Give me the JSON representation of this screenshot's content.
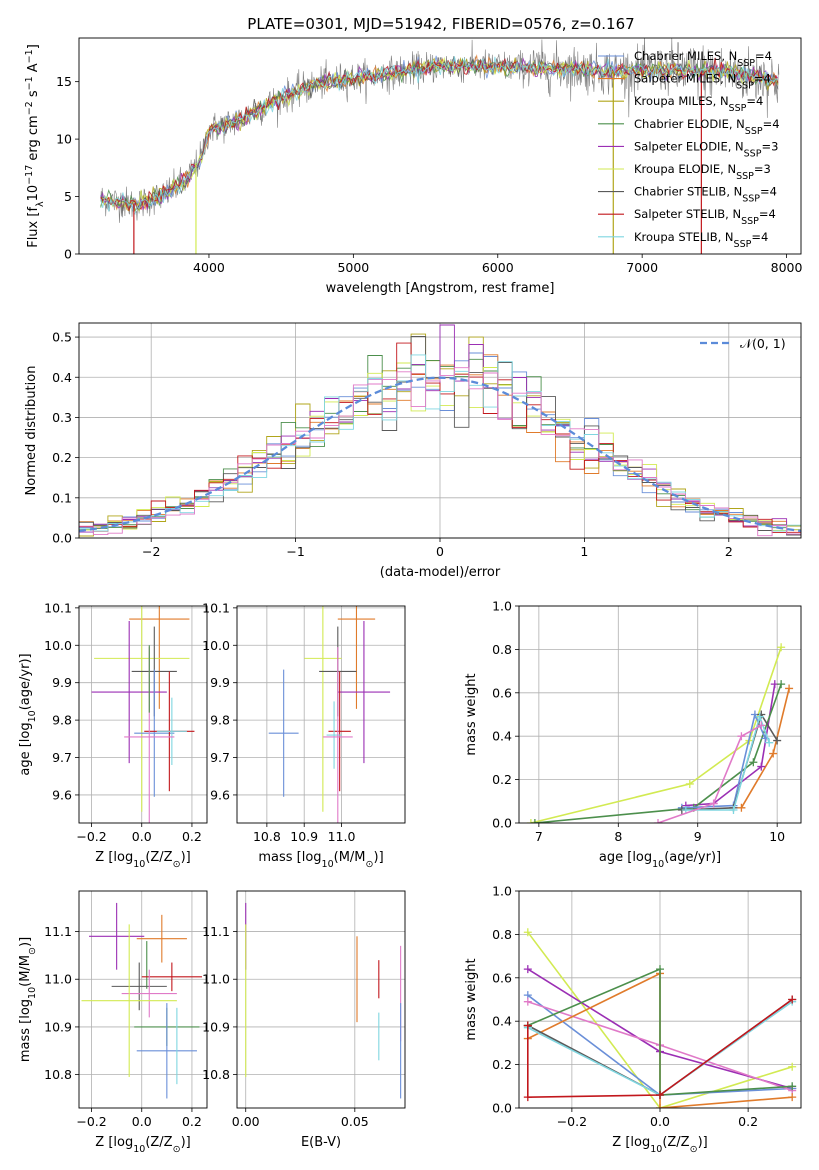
{
  "title": "PLATE=0301, MJD=51942, FIBERID=0576, z=0.167",
  "colors": {
    "Chabrier MILES": "#6a8fd8",
    "Salpeter MILES": "#e07b2b",
    "Kroupa MILES": "#b0a51a",
    "Chabrier ELODIE": "#4c8f4c",
    "Salpeter ELODIE": "#9b2fb4",
    "Kroupa ELODIE": "#d2ea52",
    "Chabrier STELIB": "#5a5a5a",
    "Salpeter STELIB": "#c2171c",
    "Kroupa STELIB": "#7fd6e0",
    "extra_pink": "#e07ac8",
    "observed": "#808080",
    "gaussian": "#5b8bd9",
    "grid": "#b0b0b0"
  },
  "chart_data": [
    {
      "id": "spectrum",
      "type": "line",
      "xlabel": "wavelength [Angstrom, rest frame]",
      "ylabel": "Flux [f_λ10^-17 erg cm^-2 s^-1 A^-1]",
      "xlim": [
        3100,
        8100
      ],
      "ylim": [
        0,
        18.8
      ],
      "xticks": [
        4000,
        5000,
        6000,
        7000,
        8000
      ],
      "yticks": [
        0,
        5,
        10,
        15
      ],
      "grid": false,
      "legend_position": "top-right",
      "legend": [
        {
          "label": "Chabrier MILES, N_SSP=4",
          "color_key": "Chabrier MILES"
        },
        {
          "label": "Salpeter MILES, N_SSP=4",
          "color_key": "Salpeter MILES"
        },
        {
          "label": "Kroupa MILES, N_SSP=4",
          "color_key": "Kroupa MILES"
        },
        {
          "label": "Chabrier ELODIE, N_SSP=4",
          "color_key": "Chabrier ELODIE"
        },
        {
          "label": "Salpeter ELODIE, N_SSP=3",
          "color_key": "Salpeter ELODIE"
        },
        {
          "label": "Kroupa ELODIE, N_SSP=3",
          "color_key": "Kroupa ELODIE"
        },
        {
          "label": "Chabrier STELIB, N_SSP=4",
          "color_key": "Chabrier STELIB"
        },
        {
          "label": "Salpeter STELIB, N_SSP=4",
          "color_key": "Salpeter STELIB"
        },
        {
          "label": "Kroupa STELIB, N_SSP=4",
          "color_key": "Kroupa STELIB"
        }
      ],
      "continuum": {
        "x": [
          3250,
          3500,
          3700,
          3850,
          3950,
          4000,
          4200,
          4500,
          4800,
          5200,
          5600,
          6000,
          6400,
          6800,
          7200,
          7600,
          7950
        ],
        "y": [
          4.8,
          4.3,
          5.2,
          6.5,
          8.5,
          10.8,
          11.6,
          13.6,
          15.0,
          15.6,
          16.4,
          16.3,
          16.2,
          15.9,
          16.0,
          15.8,
          15.1
        ]
      },
      "model_drops": [
        {
          "series": "Salpeter STELIB",
          "x": 3480
        },
        {
          "series": "Kroupa ELODIE",
          "x": 3910
        },
        {
          "series": "Kroupa MILES",
          "x": 6800
        },
        {
          "series": "Salpeter STELIB",
          "x": 7410
        }
      ]
    },
    {
      "id": "residual-histogram",
      "type": "line",
      "xlabel": "(data-model)/error",
      "ylabel": "Normed distribution",
      "xlim": [
        -2.5,
        2.5
      ],
      "ylim": [
        0,
        0.535
      ],
      "xticks": [
        -2,
        -1,
        0,
        1,
        2
      ],
      "yticks": [
        0.0,
        0.1,
        0.2,
        0.3,
        0.4,
        0.5
      ],
      "grid": true,
      "legend_position": "top-right",
      "gaussian_label": "𝒩(0, 1)",
      "bin_width": 0.1
    },
    {
      "id": "z-age",
      "type": "scatter",
      "xlabel": "Z [log10(Z/Z⊙)]",
      "ylabel": "age  [log10(age/yr)]",
      "xlim": [
        -0.25,
        0.26
      ],
      "ylim": [
        9.525,
        10.105
      ],
      "xticks": [
        -0.2,
        0.0,
        0.2
      ],
      "yticks": [
        9.6,
        9.7,
        9.8,
        9.9,
        10.0,
        10.1
      ],
      "grid": true,
      "points": [
        {
          "c": "Salpeter MILES",
          "x": 0.07,
          "y": 10.07,
          "xe": 0.12,
          "ye": 0.24
        },
        {
          "c": "Kroupa ELODIE",
          "x": 0.0,
          "y": 9.965,
          "xe": 0.19,
          "ye": 0.41
        },
        {
          "c": "Chabrier STELIB",
          "x": 0.05,
          "y": 9.93,
          "xe": 0.09,
          "ye": 0.12
        },
        {
          "c": "Salpeter ELODIE",
          "x": -0.05,
          "y": 9.875,
          "xe": 0.15,
          "ye": 0.19
        },
        {
          "c": "Chabrier MILES",
          "x": 0.05,
          "y": 9.765,
          "xe": 0.08,
          "ye": 0.17
        },
        {
          "c": "Salpeter STELIB",
          "x": 0.11,
          "y": 9.77,
          "xe": 0.1,
          "ye": 0.16
        },
        {
          "c": "Kroupa STELIB",
          "x": 0.12,
          "y": 9.77,
          "xe": 0.06,
          "ye": 0.09
        },
        {
          "c": "extra_pink",
          "x": 0.03,
          "y": 9.755,
          "xe": 0.1,
          "ye": 0.24
        },
        {
          "c": "Chabrier ELODIE",
          "x": 0.03,
          "y": 9.91,
          "xe": 0.0,
          "ye": 0.09
        }
      ]
    },
    {
      "id": "mass-age",
      "type": "scatter",
      "xlabel": "mass [log10(M/M⊙)]",
      "ylabel": "",
      "xlim": [
        10.72,
        11.17
      ],
      "ylim": [
        9.525,
        10.105
      ],
      "xticks": [
        10.8,
        10.9,
        11.0
      ],
      "yticks": [
        9.6,
        9.7,
        9.8,
        9.9,
        10.0,
        10.1
      ],
      "grid": true,
      "points": [
        {
          "c": "Salpeter MILES",
          "x": 11.04,
          "y": 10.07,
          "xe": 0.05,
          "ye": 0.24
        },
        {
          "c": "Kroupa ELODIE",
          "x": 10.95,
          "y": 9.965,
          "xe": 0.05,
          "ye": 0.41
        },
        {
          "c": "Chabrier STELIB",
          "x": 10.99,
          "y": 9.93,
          "xe": 0.05,
          "ye": 0.12
        },
        {
          "c": "Salpeter ELODIE",
          "x": 11.06,
          "y": 9.875,
          "xe": 0.07,
          "ye": 0.19
        },
        {
          "c": "Chabrier MILES",
          "x": 10.845,
          "y": 9.765,
          "xe": 0.04,
          "ye": 0.17
        },
        {
          "c": "Salpeter STELIB",
          "x": 10.995,
          "y": 9.77,
          "xe": 0.03,
          "ye": 0.16
        },
        {
          "c": "Kroupa STELIB",
          "x": 10.98,
          "y": 9.76,
          "xe": 0.02,
          "ye": 0.09
        },
        {
          "c": "extra_pink",
          "x": 10.99,
          "y": 9.755,
          "xe": 0.04,
          "ye": 0.24
        }
      ]
    },
    {
      "id": "age-weight",
      "type": "line",
      "xlabel": "age  [log10(age/yr)]",
      "ylabel": "mass weight",
      "xlim": [
        6.75,
        10.3
      ],
      "ylim": [
        0.0,
        1.0
      ],
      "xticks": [
        7,
        8,
        9,
        10
      ],
      "yticks": [
        0.0,
        0.2,
        0.4,
        0.6,
        0.8,
        1.0
      ],
      "grid": true,
      "series": [
        {
          "c": "Kroupa ELODIE",
          "x": [
            6.9,
            8.9,
            9.65,
            10.05
          ],
          "y": [
            0.0,
            0.18,
            0.38,
            0.81
          ]
        },
        {
          "c": "Salpeter MILES",
          "x": [
            9.55,
            9.95,
            10.15
          ],
          "y": [
            0.07,
            0.32,
            0.62
          ]
        },
        {
          "c": "Salpeter ELODIE",
          "x": [
            8.85,
            9.2,
            9.8,
            9.97
          ],
          "y": [
            0.08,
            0.09,
            0.26,
            0.64
          ]
        },
        {
          "c": "Chabrier ELODIE",
          "x": [
            6.95,
            8.95,
            9.7,
            10.05
          ],
          "y": [
            0.0,
            0.07,
            0.28,
            0.64
          ]
        },
        {
          "c": "Chabrier MILES",
          "x": [
            8.8,
            9.45,
            9.72,
            9.85
          ],
          "y": [
            0.07,
            0.08,
            0.5,
            0.39
          ]
        },
        {
          "c": "Chabrier STELIB",
          "x": [
            8.8,
            9.45,
            9.8,
            10.0
          ],
          "y": [
            0.06,
            0.07,
            0.5,
            0.38
          ]
        },
        {
          "c": "Kroupa STELIB",
          "x": [
            8.85,
            9.45,
            9.78,
            9.9
          ],
          "y": [
            0.06,
            0.06,
            0.49,
            0.37
          ]
        },
        {
          "c": "extra_pink",
          "x": [
            8.5,
            9.2,
            9.55,
            9.8
          ],
          "y": [
            0.0,
            0.09,
            0.4,
            0.45
          ]
        }
      ]
    },
    {
      "id": "z-mass",
      "type": "scatter",
      "xlabel": "Z [log10(Z/Z⊙)]",
      "ylabel": "mass [log10(M/M⊙)]",
      "xlim": [
        -0.25,
        0.26
      ],
      "ylim": [
        10.73,
        11.185
      ],
      "xticks": [
        -0.2,
        0.0,
        0.2
      ],
      "yticks": [
        10.8,
        10.9,
        11.0,
        11.1
      ],
      "grid": true,
      "points": [
        {
          "c": "Salpeter ELODIE",
          "x": -0.1,
          "y": 11.09,
          "xe": 0.11,
          "ye": 0.07
        },
        {
          "c": "Salpeter MILES",
          "x": 0.08,
          "y": 11.085,
          "xe": 0.1,
          "ye": 0.05
        },
        {
          "c": "Chabrier ELODIE",
          "x": 0.02,
          "y": 11.03,
          "xe": 0.0,
          "ye": 0.05
        },
        {
          "c": "Salpeter STELIB",
          "x": 0.12,
          "y": 11.005,
          "xe": 0.12,
          "ye": 0.03
        },
        {
          "c": "Chabrier STELIB",
          "x": -0.01,
          "y": 10.985,
          "xe": 0.11,
          "ye": 0.05
        },
        {
          "c": "extra_pink",
          "x": 0.03,
          "y": 10.97,
          "xe": 0.11,
          "ye": 0.05
        },
        {
          "c": "Kroupa ELODIE",
          "x": -0.05,
          "y": 10.955,
          "xe": 0.19,
          "ye": 0.16
        },
        {
          "c": "Chabrier ELODIE",
          "x": 0.1,
          "y": 10.9,
          "xe": 0.13,
          "ye": 0.04
        },
        {
          "c": "Chabrier MILES",
          "x": 0.1,
          "y": 10.85,
          "xe": 0.12,
          "ye": 0.1
        },
        {
          "c": "Kroupa STELIB",
          "x": 0.14,
          "y": 10.86,
          "xe": 0.0,
          "ye": 0.08
        }
      ]
    },
    {
      "id": "ebv-mass",
      "type": "scatter",
      "xlabel": "E(B-V)",
      "ylabel": "",
      "xlim": [
        -0.004,
        0.073
      ],
      "ylim": [
        10.73,
        11.185
      ],
      "xticks": [
        0.0,
        0.05
      ],
      "yticks": [
        10.8,
        10.9,
        11.0,
        11.1
      ],
      "grid": true,
      "points": [
        {
          "c": "Salpeter ELODIE",
          "x": 0.0,
          "y": 11.09,
          "xe": 0.0,
          "ye": 0.07
        },
        {
          "c": "Kroupa ELODIE",
          "x": 0.0,
          "y": 10.955,
          "xe": 0.0,
          "ye": 0.16
        },
        {
          "c": "Salpeter MILES",
          "x": 0.051,
          "y": 11.0,
          "xe": 0.0,
          "ye": 0.09
        },
        {
          "c": "Salpeter STELIB",
          "x": 0.061,
          "y": 11.0,
          "xe": 0.0,
          "ye": 0.04
        },
        {
          "c": "Kroupa STELIB",
          "x": 0.061,
          "y": 10.88,
          "xe": 0.0,
          "ye": 0.05
        },
        {
          "c": "extra_pink",
          "x": 0.071,
          "y": 10.97,
          "xe": 0.0,
          "ye": 0.1
        },
        {
          "c": "Chabrier MILES",
          "x": 0.071,
          "y": 10.85,
          "xe": 0.0,
          "ye": 0.1
        }
      ]
    },
    {
      "id": "z-weight",
      "type": "line",
      "xlabel": "Z [log10(Z/Z⊙)]",
      "ylabel": "mass weight",
      "xlim": [
        -0.32,
        0.32
      ],
      "ylim": [
        0.0,
        1.0
      ],
      "xticks": [
        -0.2,
        0.0,
        0.2
      ],
      "yticks": [
        0.0,
        0.2,
        0.4,
        0.6,
        0.8,
        1.0
      ],
      "grid": true,
      "series": [
        {
          "c": "Kroupa ELODIE",
          "x": [
            -0.3,
            0.0,
            0.3
          ],
          "y": [
            0.81,
            0.0,
            0.19
          ]
        },
        {
          "c": "Salpeter ELODIE",
          "x": [
            -0.3,
            0.0,
            0.3
          ],
          "y": [
            0.64,
            0.26,
            0.09
          ]
        },
        {
          "c": "Chabrier MILES",
          "x": [
            -0.3,
            0.0,
            0.3
          ],
          "y": [
            0.52,
            0.06,
            0.09
          ]
        },
        {
          "c": "extra_pink",
          "x": [
            -0.3,
            0.0,
            0.3
          ],
          "y": [
            0.49,
            0.29,
            0.08
          ]
        },
        {
          "c": "Salpeter MILES",
          "x": [
            -0.3,
            0.0,
            0.0,
            0.3
          ],
          "y": [
            0.32,
            0.62,
            0.0,
            0.05
          ]
        },
        {
          "c": "Chabrier STELIB",
          "x": [
            -0.3,
            0.0,
            0.3
          ],
          "y": [
            0.38,
            0.06,
            0.5
          ]
        },
        {
          "c": "Kroupa STELIB",
          "x": [
            -0.3,
            0.0,
            0.3
          ],
          "y": [
            0.37,
            0.06,
            0.49
          ]
        },
        {
          "c": "Chabrier ELODIE",
          "x": [
            -0.3,
            0.0,
            0.0,
            0.3
          ],
          "y": [
            0.38,
            0.64,
            0.06,
            0.1
          ]
        },
        {
          "c": "Salpeter STELIB",
          "x": [
            -0.3,
            -0.3,
            0.0,
            0.3
          ],
          "y": [
            0.38,
            0.05,
            0.06,
            0.5
          ]
        }
      ]
    }
  ]
}
